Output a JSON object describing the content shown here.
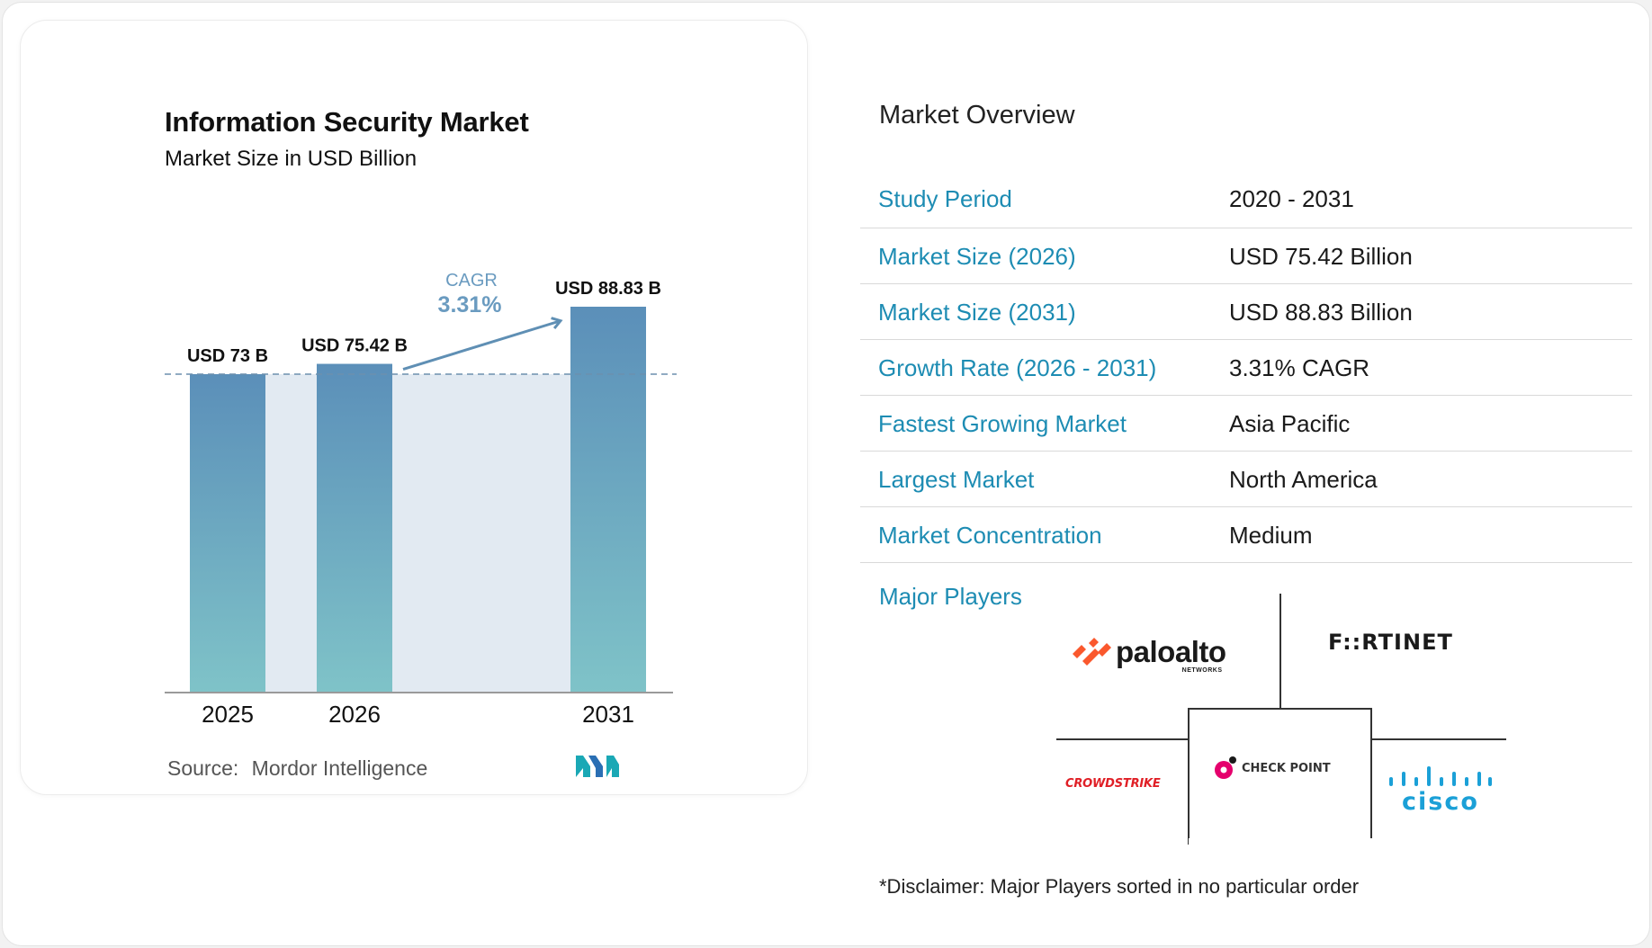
{
  "chart_data": {
    "type": "bar",
    "title": "Information Security Market",
    "subtitle": "Market Size in USD Billion",
    "categories": [
      "2025",
      "2026",
      "2031"
    ],
    "values": [
      73,
      75.42,
      88.83
    ],
    "data_labels": [
      "USD 73 B",
      "USD 75.42 B",
      "USD 88.83 B"
    ],
    "annotation": {
      "label": "CAGR",
      "value": "3.31%"
    },
    "ylim": [
      0,
      100
    ],
    "grid": false,
    "colors": {
      "bar_top": "#5b8fb9",
      "bar_bottom": "#7fc3c8",
      "band": "#e2eaf2",
      "dashed_line": "#6c8fae",
      "arrow": "#5f8fb4",
      "cagr_label": "#6a9bc0"
    }
  },
  "source": {
    "label": "Source:",
    "value": "Mordor Intelligence"
  },
  "overview": {
    "title": "Market Overview",
    "rows": [
      {
        "key": "Study Period",
        "value": "2020 - 2031"
      },
      {
        "key": "Market Size (2026)",
        "value": "USD 75.42 Billion"
      },
      {
        "key": "Market Size (2031)",
        "value": "USD 88.83 Billion"
      },
      {
        "key": "Growth Rate (2026 - 2031)",
        "value": "3.31% CAGR"
      },
      {
        "key": "Fastest Growing Market",
        "value": "Asia Pacific"
      },
      {
        "key": "Largest Market",
        "value": "North America"
      },
      {
        "key": "Market Concentration",
        "value": "Medium"
      }
    ],
    "key_color": "#1d8cb3"
  },
  "players": {
    "title": "Major Players",
    "logos": [
      {
        "name": "paloalto-logo",
        "text": "paloalto",
        "sub": "NETWORKS",
        "color": "#fa582d"
      },
      {
        "name": "fortinet-logo",
        "text": "F::RTINET",
        "color": "#ee3124"
      },
      {
        "name": "crowdstrike-logo",
        "text": "CROWDSTRIKE",
        "color": "#e01f26"
      },
      {
        "name": "checkpoint-logo",
        "text": "CHECK POINT",
        "color": "#e5006d"
      },
      {
        "name": "cisco-logo",
        "text": "cisco",
        "color": "#1ba0d7"
      }
    ]
  },
  "disclaimer": "*Disclaimer: Major Players sorted in no particular order"
}
